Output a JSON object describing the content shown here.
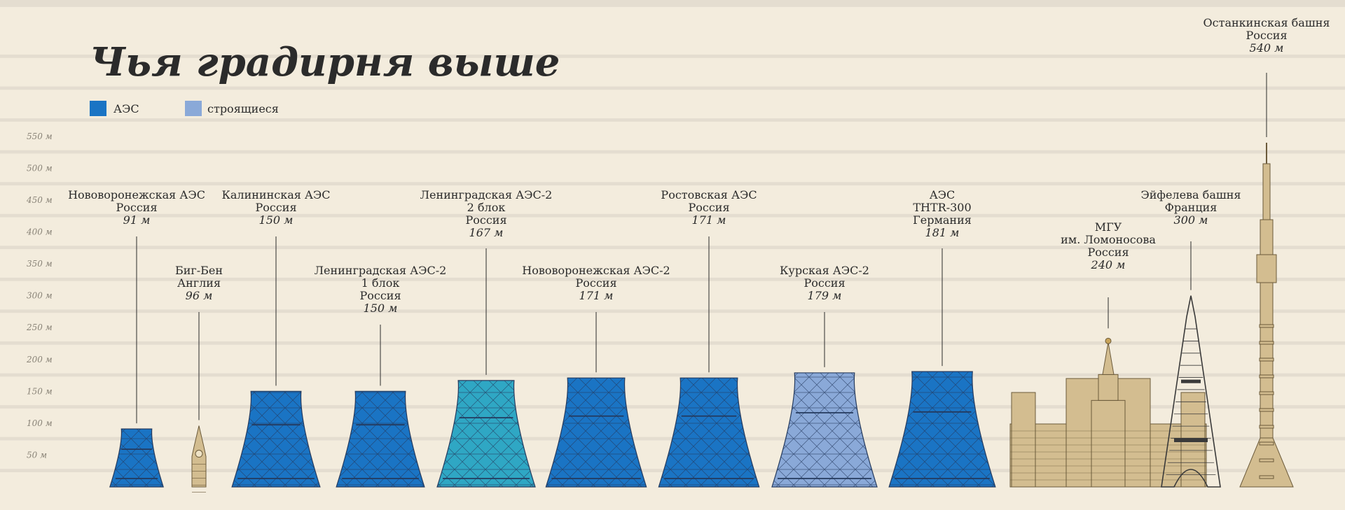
{
  "title": "Чья градирня выше",
  "legend": [
    {
      "label": "АЭС",
      "color": "#1a74c4"
    },
    {
      "label": "строящиеся",
      "color": "#8aa9d8"
    }
  ],
  "colors": {
    "stripe_light": "#f3ecdd",
    "stripe_dark": "#e4ddd0",
    "npp": "#1a74c4",
    "npp_teal": "#2fa7c4",
    "construction": "#8aa9d8",
    "landmark": "#d3bd90",
    "grid_line": "#243a5e",
    "text": "#2b2b2b"
  },
  "chart_data": {
    "type": "bar",
    "ylabel": "м",
    "ylim": [
      0,
      550
    ],
    "y_ticks": [
      "50 м",
      "100 м",
      "150 м",
      "200 м",
      "250 м",
      "300 м",
      "350 м",
      "400 м",
      "450 м",
      "500 м",
      "550 м"
    ],
    "y_tick_values": [
      50,
      100,
      150,
      200,
      250,
      300,
      350,
      400,
      450,
      500,
      550
    ],
    "categories": [
      "Нововоронежская АЭС",
      "Биг-Бен",
      "Калининская АЭС",
      "Ленинградская АЭС-2 1 блок",
      "Ленинградская АЭС-2 2 блок",
      "Нововоронежская АЭС-2",
      "Ростовская АЭС",
      "Курская АЭС-2",
      "АЭС THTR-300",
      "МГУ им. Ломоносова",
      "Эйфелева башня",
      "Останкинская башня"
    ],
    "items": [
      {
        "lines": [
          "Нововоронежская АЭС",
          "Россия"
        ],
        "height_label": "91 м",
        "value": 91,
        "kind": "npp"
      },
      {
        "lines": [
          "Биг-Бен",
          "Англия"
        ],
        "height_label": "96 м",
        "value": 96,
        "kind": "bigben"
      },
      {
        "lines": [
          "Калининская АЭС",
          "Россия"
        ],
        "height_label": "150 м",
        "value": 150,
        "kind": "npp"
      },
      {
        "lines": [
          "Ленинградская АЭС-2",
          "1 блок",
          "Россия"
        ],
        "height_label": "150 м",
        "value": 150,
        "kind": "npp"
      },
      {
        "lines": [
          "Ленинградская АЭС-2",
          "2 блок",
          "Россия"
        ],
        "height_label": "167 м",
        "value": 167,
        "kind": "npp_teal"
      },
      {
        "lines": [
          "Нововоронежская АЭС-2",
          "Россия"
        ],
        "height_label": "171 м",
        "value": 171,
        "kind": "npp"
      },
      {
        "lines": [
          "Ростовская АЭС",
          "Россия"
        ],
        "height_label": "171 м",
        "value": 171,
        "kind": "npp"
      },
      {
        "lines": [
          "Курская АЭС-2",
          "Россия"
        ],
        "height_label": "179 м",
        "value": 179,
        "kind": "construction"
      },
      {
        "lines": [
          "АЭС",
          "THTR-300",
          "Германия"
        ],
        "height_label": "181 м",
        "value": 181,
        "kind": "npp"
      },
      {
        "lines": [
          "МГУ",
          "им. Ломоносова",
          "Россия"
        ],
        "height_label": "240 м",
        "value": 240,
        "kind": "mgu"
      },
      {
        "lines": [
          "Эйфелева башня",
          "Франция"
        ],
        "height_label": "300 м",
        "value": 300,
        "kind": "eiffel"
      },
      {
        "lines": [
          "Останкинская башня",
          "Россия"
        ],
        "height_label": "540 м",
        "value": 540,
        "kind": "ostankino"
      }
    ]
  }
}
